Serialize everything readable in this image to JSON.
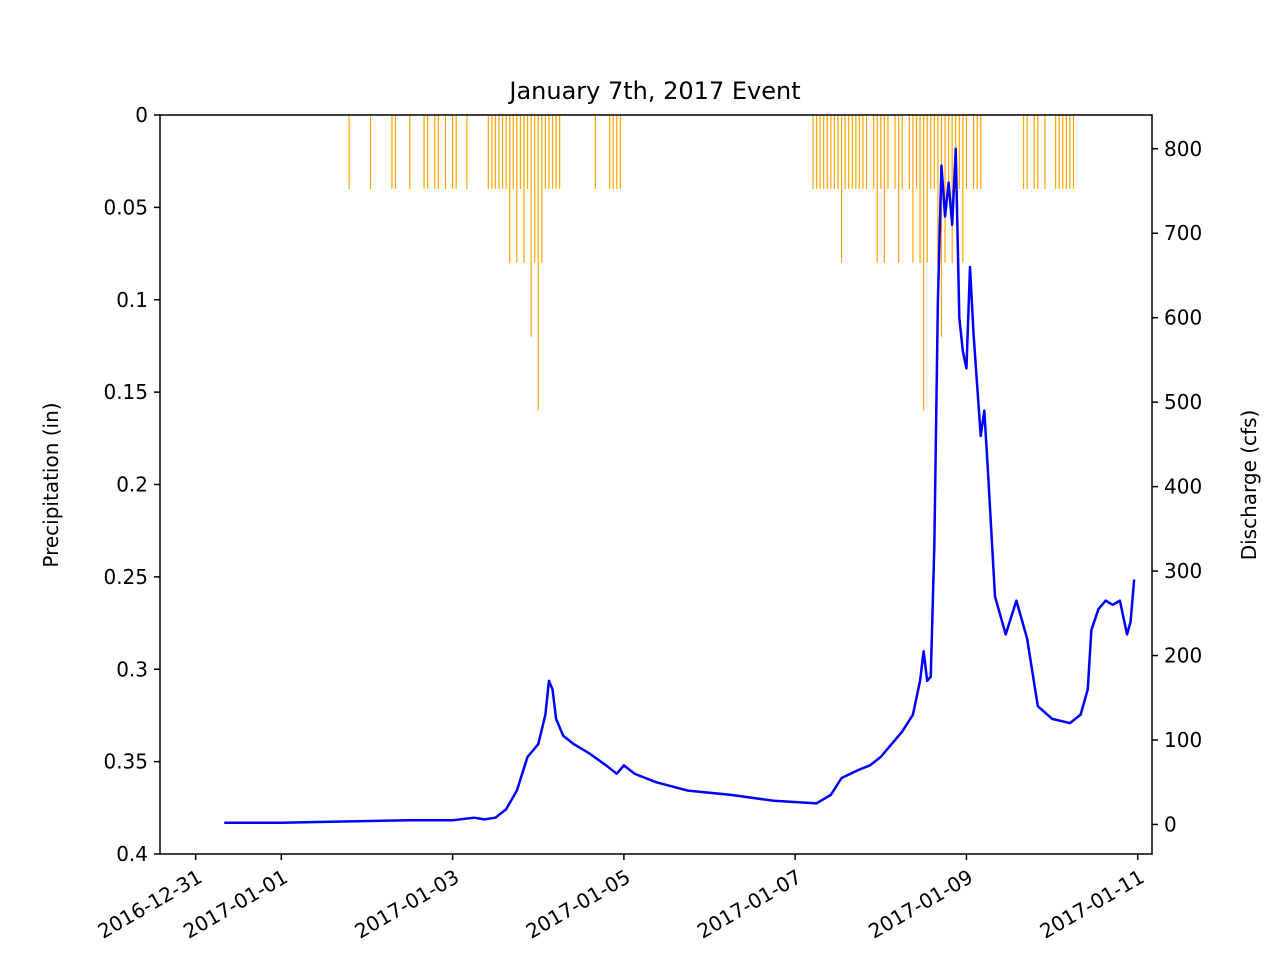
{
  "chart_data": {
    "type": "line",
    "title": "January 7th, 2017 Event",
    "ylabel_left": "Precipitation (in)",
    "ylabel_right": "Discharge (cfs)",
    "left_axis": {
      "range": [
        0.4,
        0
      ],
      "inverted": true,
      "ticks": [
        0,
        0.05,
        0.1,
        0.15,
        0.2,
        0.25,
        0.3,
        0.35,
        0.4
      ],
      "tick_labels": [
        "0",
        "0.05",
        "0.1",
        "0.15",
        "0.2",
        "0.25",
        "0.3",
        "0.35",
        "0.4"
      ]
    },
    "right_axis": {
      "range": [
        -35,
        840
      ],
      "ticks": [
        0,
        100,
        200,
        300,
        400,
        500,
        600,
        700,
        800
      ],
      "tick_labels": [
        "0",
        "100",
        "200",
        "300",
        "400",
        "500",
        "600",
        "700",
        "800"
      ]
    },
    "x_axis": {
      "range": [
        "2016-12-30T14:00",
        "2017-01-11T04:00"
      ],
      "ticks": [
        "2016-12-31",
        "2017-01-01",
        "2017-01-03",
        "2017-01-05",
        "2017-01-07",
        "2017-01-09",
        "2017-01-11"
      ],
      "tick_labels": [
        "2016-12-31",
        "2017-01-01",
        "2017-01-03",
        "2017-01-05",
        "2017-01-07",
        "2017-01-09",
        "2017-01-11"
      ],
      "label_rotation": -30
    },
    "grid": false,
    "colors": {
      "discharge": "#0000ff",
      "precipitation": "#ffa500"
    },
    "series": [
      {
        "kind": "bar",
        "axis": "left",
        "points": [
          [
            "2017-01-01T19:00",
            0.04
          ],
          [
            "2017-01-02T01:00",
            0.04
          ],
          [
            "2017-01-02T07:00",
            0.04
          ],
          [
            "2017-01-02T08:00",
            0.04
          ],
          [
            "2017-01-02T12:00",
            0.04
          ],
          [
            "2017-01-02T16:00",
            0.04
          ],
          [
            "2017-01-02T17:00",
            0.04
          ],
          [
            "2017-01-02T19:00",
            0.04
          ],
          [
            "2017-01-02T20:00",
            0.04
          ],
          [
            "2017-01-02T22:00",
            0.04
          ],
          [
            "2017-01-03T00:00",
            0.04
          ],
          [
            "2017-01-03T01:00",
            0.04
          ],
          [
            "2017-01-03T04:00",
            0.04
          ],
          [
            "2017-01-03T10:00",
            0.04
          ],
          [
            "2017-01-03T11:00",
            0.04
          ],
          [
            "2017-01-03T12:00",
            0.04
          ],
          [
            "2017-01-03T13:00",
            0.04
          ],
          [
            "2017-01-03T14:00",
            0.04
          ],
          [
            "2017-01-03T15:00",
            0.04
          ],
          [
            "2017-01-03T16:00",
            0.08
          ],
          [
            "2017-01-03T17:00",
            0.04
          ],
          [
            "2017-01-03T18:00",
            0.08
          ],
          [
            "2017-01-03T19:00",
            0.04
          ],
          [
            "2017-01-03T20:00",
            0.08
          ],
          [
            "2017-01-03T21:00",
            0.04
          ],
          [
            "2017-01-03T22:00",
            0.12
          ],
          [
            "2017-01-03T23:00",
            0.08
          ],
          [
            "2017-01-04T00:00",
            0.16
          ],
          [
            "2017-01-04T01:00",
            0.08
          ],
          [
            "2017-01-04T02:00",
            0.04
          ],
          [
            "2017-01-04T03:00",
            0.04
          ],
          [
            "2017-01-04T04:00",
            0.04
          ],
          [
            "2017-01-04T05:00",
            0.04
          ],
          [
            "2017-01-04T06:00",
            0.04
          ],
          [
            "2017-01-04T16:00",
            0.04
          ],
          [
            "2017-01-04T20:00",
            0.04
          ],
          [
            "2017-01-04T21:00",
            0.04
          ],
          [
            "2017-01-04T22:00",
            0.04
          ],
          [
            "2017-01-04T23:00",
            0.04
          ],
          [
            "2017-01-07T05:00",
            0.04
          ],
          [
            "2017-01-07T06:00",
            0.04
          ],
          [
            "2017-01-07T07:00",
            0.04
          ],
          [
            "2017-01-07T08:00",
            0.04
          ],
          [
            "2017-01-07T09:00",
            0.04
          ],
          [
            "2017-01-07T10:00",
            0.04
          ],
          [
            "2017-01-07T11:00",
            0.04
          ],
          [
            "2017-01-07T12:00",
            0.04
          ],
          [
            "2017-01-07T13:00",
            0.08
          ],
          [
            "2017-01-07T14:00",
            0.04
          ],
          [
            "2017-01-07T15:00",
            0.04
          ],
          [
            "2017-01-07T16:00",
            0.04
          ],
          [
            "2017-01-07T17:00",
            0.04
          ],
          [
            "2017-01-07T18:00",
            0.04
          ],
          [
            "2017-01-07T19:00",
            0.04
          ],
          [
            "2017-01-07T20:00",
            0.04
          ],
          [
            "2017-01-07T22:00",
            0.04
          ],
          [
            "2017-01-07T23:00",
            0.08
          ],
          [
            "2017-01-08T00:00",
            0.04
          ],
          [
            "2017-01-08T01:00",
            0.08
          ],
          [
            "2017-01-08T02:00",
            0.04
          ],
          [
            "2017-01-08T04:00",
            0.04
          ],
          [
            "2017-01-08T05:00",
            0.08
          ],
          [
            "2017-01-08T06:00",
            0.04
          ],
          [
            "2017-01-08T08:00",
            0.04
          ],
          [
            "2017-01-08T09:00",
            0.08
          ],
          [
            "2017-01-08T10:00",
            0.04
          ],
          [
            "2017-01-08T11:00",
            0.08
          ],
          [
            "2017-01-08T12:00",
            0.16
          ],
          [
            "2017-01-08T13:00",
            0.08
          ],
          [
            "2017-01-08T14:00",
            0.04
          ],
          [
            "2017-01-08T15:00",
            0.04
          ],
          [
            "2017-01-08T16:00",
            0.08
          ],
          [
            "2017-01-08T17:00",
            0.12
          ],
          [
            "2017-01-08T18:00",
            0.08
          ],
          [
            "2017-01-08T19:00",
            0.04
          ],
          [
            "2017-01-08T20:00",
            0.08
          ],
          [
            "2017-01-08T21:00",
            0.04
          ],
          [
            "2017-01-08T22:00",
            0.04
          ],
          [
            "2017-01-08T23:00",
            0.08
          ],
          [
            "2017-01-09T00:00",
            0.04
          ],
          [
            "2017-01-09T02:00",
            0.04
          ],
          [
            "2017-01-09T03:00",
            0.04
          ],
          [
            "2017-01-09T04:00",
            0.04
          ],
          [
            "2017-01-09T16:00",
            0.04
          ],
          [
            "2017-01-09T17:00",
            0.04
          ],
          [
            "2017-01-09T19:00",
            0.04
          ],
          [
            "2017-01-09T20:00",
            0.04
          ],
          [
            "2017-01-09T22:00",
            0.04
          ],
          [
            "2017-01-10T01:00",
            0.04
          ],
          [
            "2017-01-10T02:00",
            0.04
          ],
          [
            "2017-01-10T03:00",
            0.04
          ],
          [
            "2017-01-10T04:00",
            0.04
          ],
          [
            "2017-01-10T05:00",
            0.04
          ],
          [
            "2017-01-10T06:00",
            0.04
          ]
        ]
      },
      {
        "kind": "line",
        "axis": "right",
        "points": [
          [
            "2016-12-31T08:00",
            2
          ],
          [
            "2017-01-01T00:00",
            2
          ],
          [
            "2017-01-01T12:00",
            3
          ],
          [
            "2017-01-02T12:00",
            5
          ],
          [
            "2017-01-03T00:00",
            5
          ],
          [
            "2017-01-03T06:00",
            8
          ],
          [
            "2017-01-03T09:00",
            6
          ],
          [
            "2017-01-03T12:00",
            8
          ],
          [
            "2017-01-03T15:00",
            18
          ],
          [
            "2017-01-03T18:00",
            40
          ],
          [
            "2017-01-03T21:00",
            80
          ],
          [
            "2017-01-04T00:00",
            95
          ],
          [
            "2017-01-04T02:00",
            130
          ],
          [
            "2017-01-04T03:00",
            170
          ],
          [
            "2017-01-04T04:00",
            160
          ],
          [
            "2017-01-04T05:00",
            125
          ],
          [
            "2017-01-04T07:00",
            105
          ],
          [
            "2017-01-04T10:00",
            95
          ],
          [
            "2017-01-04T14:00",
            85
          ],
          [
            "2017-01-04T19:00",
            70
          ],
          [
            "2017-01-04T22:00",
            60
          ],
          [
            "2017-01-05T00:00",
            70
          ],
          [
            "2017-01-05T03:00",
            60
          ],
          [
            "2017-01-05T09:00",
            50
          ],
          [
            "2017-01-05T18:00",
            40
          ],
          [
            "2017-01-06T06:00",
            35
          ],
          [
            "2017-01-06T18:00",
            28
          ],
          [
            "2017-01-07T06:00",
            25
          ],
          [
            "2017-01-07T10:00",
            35
          ],
          [
            "2017-01-07T13:00",
            55
          ],
          [
            "2017-01-07T18:00",
            65
          ],
          [
            "2017-01-07T21:00",
            70
          ],
          [
            "2017-01-08T00:00",
            80
          ],
          [
            "2017-01-08T03:00",
            95
          ],
          [
            "2017-01-08T06:00",
            110
          ],
          [
            "2017-01-08T09:00",
            130
          ],
          [
            "2017-01-08T11:00",
            170
          ],
          [
            "2017-01-08T12:00",
            205
          ],
          [
            "2017-01-08T13:00",
            170
          ],
          [
            "2017-01-08T14:00",
            175
          ],
          [
            "2017-01-08T15:00",
            330
          ],
          [
            "2017-01-08T16:00",
            620
          ],
          [
            "2017-01-08T17:00",
            780
          ],
          [
            "2017-01-08T18:00",
            720
          ],
          [
            "2017-01-08T19:00",
            760
          ],
          [
            "2017-01-08T20:00",
            710
          ],
          [
            "2017-01-08T21:00",
            800
          ],
          [
            "2017-01-08T22:00",
            600
          ],
          [
            "2017-01-08T23:00",
            560
          ],
          [
            "2017-01-09T00:00",
            540
          ],
          [
            "2017-01-09T01:00",
            660
          ],
          [
            "2017-01-09T02:00",
            580
          ],
          [
            "2017-01-09T03:00",
            520
          ],
          [
            "2017-01-09T04:00",
            460
          ],
          [
            "2017-01-09T05:00",
            490
          ],
          [
            "2017-01-09T06:00",
            420
          ],
          [
            "2017-01-09T08:00",
            270
          ],
          [
            "2017-01-09T11:00",
            225
          ],
          [
            "2017-01-09T14:00",
            265
          ],
          [
            "2017-01-09T17:00",
            220
          ],
          [
            "2017-01-09T20:00",
            140
          ],
          [
            "2017-01-10T00:00",
            125
          ],
          [
            "2017-01-10T05:00",
            120
          ],
          [
            "2017-01-10T08:00",
            130
          ],
          [
            "2017-01-10T10:00",
            160
          ],
          [
            "2017-01-10T11:00",
            230
          ],
          [
            "2017-01-10T13:00",
            255
          ],
          [
            "2017-01-10T15:00",
            265
          ],
          [
            "2017-01-10T17:00",
            260
          ],
          [
            "2017-01-10T19:00",
            265
          ],
          [
            "2017-01-10T21:00",
            225
          ],
          [
            "2017-01-10T22:00",
            240
          ],
          [
            "2017-01-10T23:00",
            290
          ]
        ]
      }
    ]
  }
}
